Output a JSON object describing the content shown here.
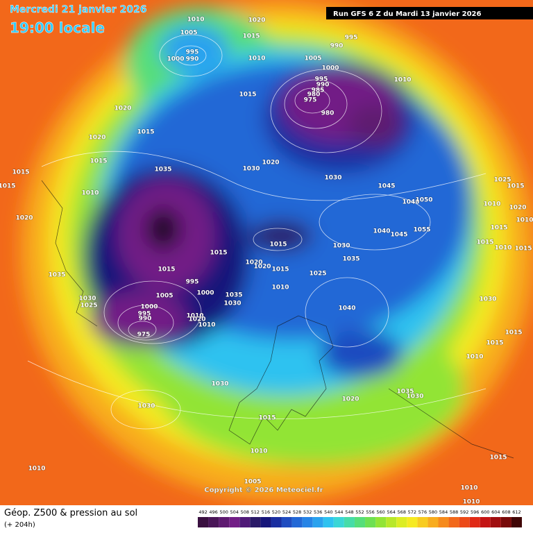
{
  "header": {
    "date": "Mercredi 21 janvier 2026",
    "time": "19:00 locale",
    "run": "Run GFS 6 Z du Mardi 13 janvier 2026"
  },
  "copyright": "Copyright © 2026 Meteociel.fr",
  "footer": {
    "title": "Géop. Z500 & pression au sol",
    "lead": "(+ 204h)"
  },
  "color_scale": {
    "ticks": [
      492,
      496,
      500,
      504,
      508,
      512,
      516,
      520,
      524,
      528,
      532,
      536,
      540,
      544,
      548,
      552,
      556,
      560,
      564,
      568,
      572,
      576,
      580,
      584,
      588,
      592,
      596,
      600,
      604,
      608,
      612
    ],
    "colors": [
      "#3a1040",
      "#4a1658",
      "#5e1a70",
      "#721e86",
      "#501a78",
      "#2a1a68",
      "#16167a",
      "#1a2ea0",
      "#1f4cc0",
      "#2268d6",
      "#2684e6",
      "#2aa2ee",
      "#2ec2f0",
      "#3ad6d6",
      "#46dca8",
      "#56de7a",
      "#6ee052",
      "#92e436",
      "#b8e82a",
      "#dced24",
      "#f6ea22",
      "#f8cc20",
      "#f8ac1e",
      "#f68a1c",
      "#f2681a",
      "#ec4a18",
      "#e02a16",
      "#c41414",
      "#a00e10",
      "#780a0a",
      "#400606"
    ]
  },
  "pressure_labels": [
    1010,
    1005,
    995,
    1000,
    990,
    1020,
    1015,
    1010,
    995,
    990,
    1005,
    1000,
    995,
    990,
    985,
    980,
    975,
    980,
    1010,
    1020,
    1015,
    1015,
    1020,
    1015,
    1015,
    1015,
    1010,
    1020,
    1035,
    1030,
    1020,
    1030,
    1045,
    1040,
    1050,
    1055,
    1045,
    1040,
    1015,
    1030,
    1035,
    1015,
    1020,
    1020,
    1015,
    1025,
    1015,
    995,
    1010,
    1005,
    1000,
    1035,
    1030,
    1030,
    1025,
    1000,
    995,
    990,
    1010,
    1020,
    1010,
    975,
    1040,
    1035,
    1025,
    1015,
    1010,
    1020,
    1015,
    1010,
    1015,
    1010,
    1015,
    1030,
    1015,
    1015,
    1010,
    1035,
    1030,
    1020,
    1030,
    1030,
    1015,
    1010,
    1010,
    1005,
    1010,
    1015,
    1010
  ]
}
